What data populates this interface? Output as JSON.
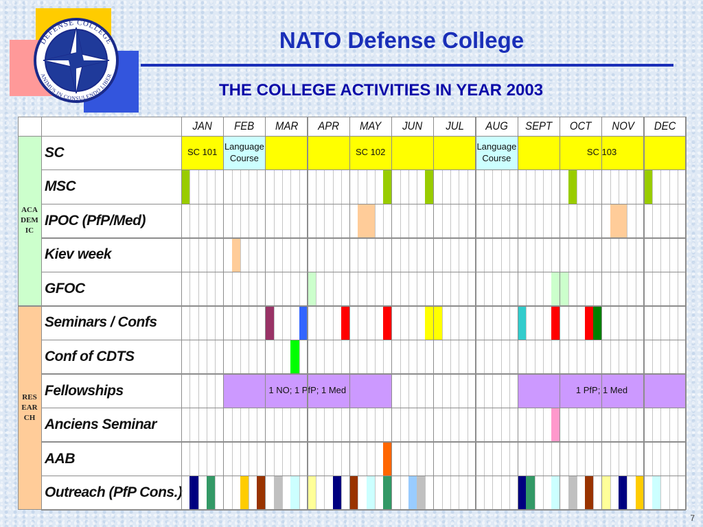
{
  "header": {
    "title": "NATO Defense College",
    "subtitle": "THE COLLEGE ACTIVITIES IN YEAR 2003"
  },
  "logo": {
    "icon": "nato-compass-star-seal",
    "text_top": "DEFENSE COLLEGE",
    "text_bottom": "ANIMUS IN CONSULENDO LIBER"
  },
  "months": [
    "JAN",
    "FEB",
    "MAR",
    "APR",
    "MAY",
    "JUN",
    "JUL",
    "AUG",
    "SEPT",
    "OCT",
    "NOV",
    "DEC"
  ],
  "groups": [
    {
      "name": "ACADEMIC",
      "color": "#ccffcc",
      "rows": 5
    },
    {
      "name": "RESEARCH",
      "color": "#ffcc99",
      "rows": 6
    }
  ],
  "activities": [
    {
      "name": "SC",
      "bars": [
        {
          "label": "SC 101",
          "from": 0,
          "to": 1,
          "color": "#ffff00"
        },
        {
          "label": "Language Course",
          "from": 1,
          "to": 2,
          "color": "#ccffff"
        },
        {
          "label": "SC 102",
          "from": 2,
          "to": 7,
          "color": "#ffff00"
        },
        {
          "label": "Language Course",
          "from": 7,
          "to": 8,
          "color": "#ccffff"
        },
        {
          "label": "SC 103",
          "from": 8,
          "to": 12,
          "color": "#ffff00"
        }
      ]
    },
    {
      "name": "MSC",
      "bars": [
        {
          "from": 0,
          "to": 0.2,
          "color": "#99cc00"
        },
        {
          "from": 4.8,
          "to": 5,
          "color": "#99cc00"
        },
        {
          "from": 5.8,
          "to": 6,
          "color": "#99cc00"
        },
        {
          "from": 9.2,
          "to": 9.4,
          "color": "#99cc00"
        },
        {
          "from": 11,
          "to": 11.2,
          "color": "#99cc00"
        }
      ]
    },
    {
      "name": "IPOC (PfP/Med)",
      "bars": [
        {
          "from": 4.2,
          "to": 4.6,
          "color": "#ffcc99"
        },
        {
          "from": 10.2,
          "to": 10.6,
          "color": "#ffcc99"
        }
      ]
    },
    {
      "name": "Kiev week",
      "bars": [
        {
          "from": 1.2,
          "to": 1.4,
          "color": "#ffcc99"
        }
      ]
    },
    {
      "name": "GFOC",
      "bars": [
        {
          "from": 3,
          "to": 3.2,
          "color": "#ccffcc"
        },
        {
          "from": 8.8,
          "to": 9.2,
          "color": "#ccffcc"
        }
      ]
    },
    {
      "name": "Seminars / Confs",
      "bars": [
        {
          "from": 2,
          "to": 2.2,
          "color": "#993366"
        },
        {
          "from": 2.8,
          "to": 3,
          "color": "#3366ff"
        },
        {
          "from": 3.8,
          "to": 4,
          "color": "#ff0000"
        },
        {
          "from": 4.8,
          "to": 5,
          "color": "#ff0000"
        },
        {
          "from": 5.8,
          "to": 6.2,
          "color": "#ffff00"
        },
        {
          "from": 8,
          "to": 8.2,
          "color": "#33cccc"
        },
        {
          "from": 8.8,
          "to": 9,
          "color": "#ff0000"
        },
        {
          "from": 9.6,
          "to": 9.8,
          "color": "#ff0000"
        },
        {
          "from": 9.8,
          "to": 10,
          "color": "#008000"
        }
      ]
    },
    {
      "name": "Conf of CDTS",
      "bars": [
        {
          "from": 2.6,
          "to": 2.8,
          "color": "#00ff00"
        }
      ]
    },
    {
      "name": "Fellowships",
      "bars": [
        {
          "label": "1 NO; 1 PfP; 1 Med",
          "from": 1,
          "to": 5,
          "color": "#cc99ff"
        },
        {
          "label": "1 PfP; 1 Med",
          "from": 8,
          "to": 12,
          "color": "#cc99ff"
        }
      ]
    },
    {
      "name": "Anciens Seminar",
      "bars": [
        {
          "from": 8.8,
          "to": 9,
          "color": "#ff99cc"
        }
      ]
    },
    {
      "name": "AAB",
      "bars": [
        {
          "from": 4.8,
          "to": 5,
          "color": "#ff6600"
        }
      ]
    },
    {
      "name": "Outreach (PfP Cons.)",
      "bars": [
        {
          "from": 0.2,
          "to": 0.4,
          "color": "#000080"
        },
        {
          "from": 0.6,
          "to": 0.8,
          "color": "#339966"
        },
        {
          "from": 1.4,
          "to": 1.6,
          "color": "#ffcc00"
        },
        {
          "from": 1.8,
          "to": 2,
          "color": "#993300"
        },
        {
          "from": 2.2,
          "to": 2.4,
          "color": "#c0c0c0"
        },
        {
          "from": 2.6,
          "to": 2.8,
          "color": "#ccffff"
        },
        {
          "from": 3,
          "to": 3.2,
          "color": "#ffff99"
        },
        {
          "from": 3.6,
          "to": 3.8,
          "color": "#000080"
        },
        {
          "from": 4,
          "to": 4.2,
          "color": "#993300"
        },
        {
          "from": 4.4,
          "to": 4.6,
          "color": "#ccffff"
        },
        {
          "from": 4.8,
          "to": 5,
          "color": "#339966"
        },
        {
          "from": 5.4,
          "to": 5.6,
          "color": "#99ccff"
        },
        {
          "from": 5.6,
          "to": 5.8,
          "color": "#c0c0c0"
        },
        {
          "from": 8,
          "to": 8.2,
          "color": "#000080"
        },
        {
          "from": 8.2,
          "to": 8.4,
          "color": "#339966"
        },
        {
          "from": 8.8,
          "to": 9,
          "color": "#ccffff"
        },
        {
          "from": 9.2,
          "to": 9.4,
          "color": "#c0c0c0"
        },
        {
          "from": 9.6,
          "to": 9.8,
          "color": "#993300"
        },
        {
          "from": 10,
          "to": 10.2,
          "color": "#ffff99"
        },
        {
          "from": 10.4,
          "to": 10.6,
          "color": "#000080"
        },
        {
          "from": 10.8,
          "to": 11,
          "color": "#ffcc00"
        },
        {
          "from": 11.2,
          "to": 11.4,
          "color": "#ccffff"
        }
      ]
    }
  ],
  "page_number": "7"
}
